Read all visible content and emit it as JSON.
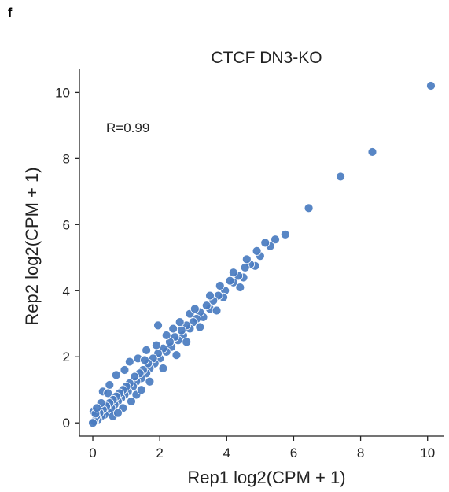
{
  "panel_label": "f",
  "chart_data": {
    "type": "scatter",
    "title": "CTCF DN3-KO",
    "xlabel": "Rep1 log2(CPM + 1)",
    "ylabel": "Rep2 log2(CPM + 1)",
    "annotation": "R=0.99",
    "xlim": [
      -0.4,
      10.5
    ],
    "ylim": [
      -0.4,
      10.7
    ],
    "xticks": [
      0,
      2,
      4,
      6,
      8,
      10
    ],
    "yticks": [
      0,
      2,
      4,
      6,
      8,
      10
    ],
    "grid": false,
    "marker_color": "#4a7cc0",
    "marker_edge_color": "#ffffff",
    "points": [
      [
        10.1,
        10.2
      ],
      [
        8.35,
        8.2
      ],
      [
        7.4,
        7.45
      ],
      [
        6.45,
        6.5
      ],
      [
        5.75,
        5.7
      ],
      [
        5.45,
        5.55
      ],
      [
        5.3,
        5.35
      ],
      [
        5.15,
        5.45
      ],
      [
        5.0,
        5.05
      ],
      [
        4.85,
        4.75
      ],
      [
        4.7,
        4.8
      ],
      [
        4.55,
        4.7
      ],
      [
        4.5,
        4.4
      ],
      [
        4.35,
        4.45
      ],
      [
        4.2,
        4.25
      ],
      [
        4.1,
        4.3
      ],
      [
        3.95,
        4.0
      ],
      [
        3.9,
        3.8
      ],
      [
        3.75,
        3.85
      ],
      [
        3.6,
        3.7
      ],
      [
        3.5,
        3.45
      ],
      [
        3.4,
        3.55
      ],
      [
        3.3,
        3.2
      ],
      [
        3.2,
        3.35
      ],
      [
        3.1,
        3.15
      ],
      [
        3.0,
        3.05
      ],
      [
        2.9,
        2.85
      ],
      [
        2.8,
        2.95
      ],
      [
        2.7,
        2.65
      ],
      [
        2.65,
        2.8
      ],
      [
        2.55,
        2.5
      ],
      [
        2.45,
        2.6
      ],
      [
        2.35,
        2.3
      ],
      [
        2.3,
        2.45
      ],
      [
        2.2,
        2.15
      ],
      [
        2.1,
        2.25
      ],
      [
        2.0,
        1.95
      ],
      [
        1.95,
        2.1
      ],
      [
        1.85,
        1.8
      ],
      [
        1.8,
        1.95
      ],
      [
        1.7,
        1.65
      ],
      [
        1.65,
        1.8
      ],
      [
        1.6,
        1.5
      ],
      [
        1.5,
        1.6
      ],
      [
        1.45,
        1.35
      ],
      [
        1.4,
        1.5
      ],
      [
        1.3,
        1.25
      ],
      [
        1.25,
        1.4
      ],
      [
        1.2,
        1.1
      ],
      [
        1.1,
        1.2
      ],
      [
        1.05,
        0.95
      ],
      [
        1.0,
        1.1
      ],
      [
        0.95,
        0.85
      ],
      [
        0.9,
        1.0
      ],
      [
        0.85,
        0.75
      ],
      [
        0.8,
        0.9
      ],
      [
        0.75,
        0.65
      ],
      [
        0.7,
        0.8
      ],
      [
        0.65,
        0.55
      ],
      [
        0.6,
        0.7
      ],
      [
        0.55,
        0.45
      ],
      [
        0.5,
        0.6
      ],
      [
        0.45,
        0.35
      ],
      [
        0.4,
        0.5
      ],
      [
        0.35,
        0.25
      ],
      [
        0.3,
        0.4
      ],
      [
        0.25,
        0.2
      ],
      [
        0.2,
        0.3
      ],
      [
        0.15,
        0.1
      ],
      [
        0.1,
        0.2
      ],
      [
        0.05,
        0.05
      ],
      [
        0.02,
        0.35
      ],
      [
        0.0,
        0.0
      ],
      [
        0.08,
        0.28
      ],
      [
        1.95,
        2.95
      ],
      [
        2.6,
        3.05
      ],
      [
        1.1,
        1.85
      ],
      [
        0.95,
        1.6
      ],
      [
        0.7,
        1.45
      ],
      [
        0.5,
        1.15
      ],
      [
        0.3,
        0.95
      ],
      [
        1.35,
        1.95
      ],
      [
        1.6,
        2.2
      ],
      [
        2.2,
        2.65
      ],
      [
        2.9,
        3.3
      ],
      [
        3.5,
        3.85
      ],
      [
        4.2,
        4.55
      ],
      [
        4.9,
        5.2
      ],
      [
        1.3,
        0.85
      ],
      [
        1.7,
        1.25
      ],
      [
        2.1,
        1.65
      ],
      [
        2.5,
        2.05
      ],
      [
        2.8,
        2.45
      ],
      [
        3.2,
        2.9
      ],
      [
        0.9,
        0.45
      ],
      [
        0.6,
        0.2
      ],
      [
        1.45,
        1.0
      ],
      [
        3.7,
        3.4
      ],
      [
        4.4,
        4.1
      ],
      [
        0.25,
        0.6
      ],
      [
        0.12,
        0.45
      ],
      [
        0.45,
        0.9
      ],
      [
        1.55,
        1.9
      ],
      [
        1.9,
        2.35
      ],
      [
        2.4,
        2.85
      ],
      [
        3.05,
        3.45
      ],
      [
        3.8,
        4.15
      ],
      [
        4.6,
        4.95
      ],
      [
        1.15,
        0.65
      ],
      [
        0.75,
        0.3
      ]
    ]
  }
}
